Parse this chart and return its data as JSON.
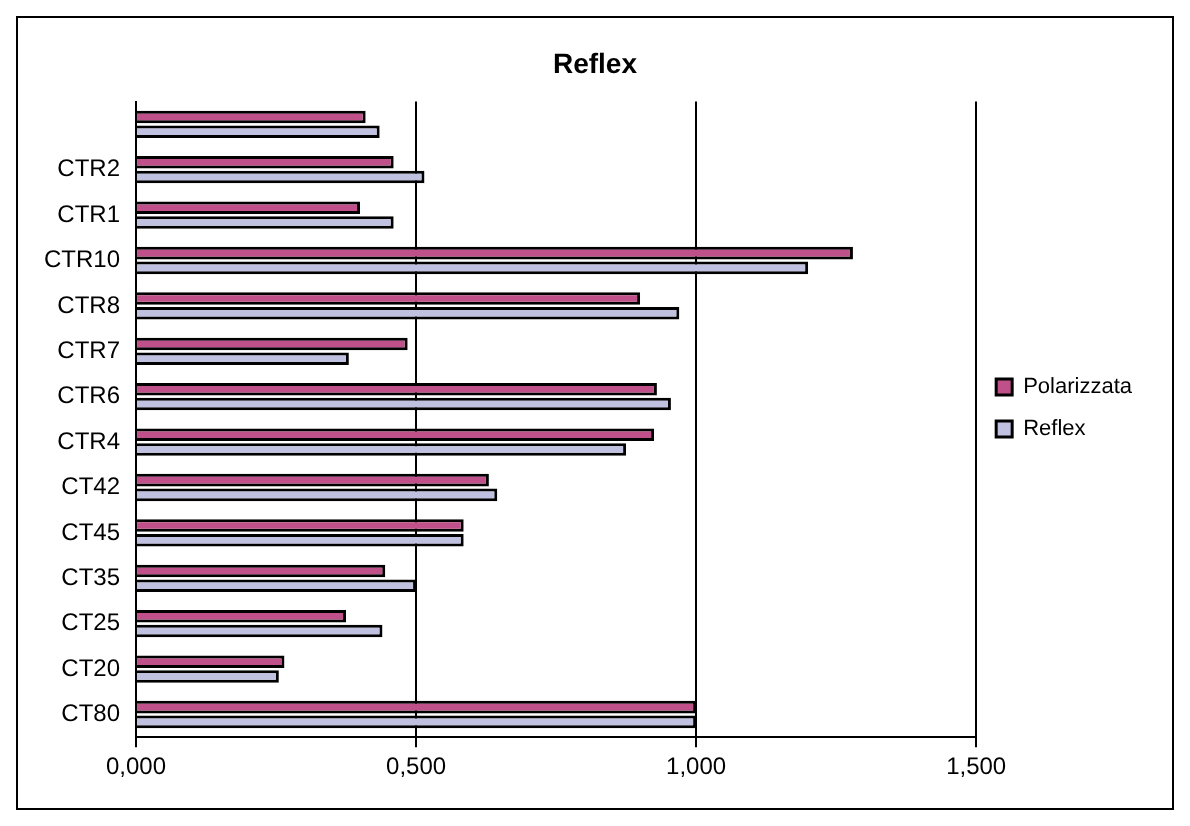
{
  "chart_data": {
    "type": "bar",
    "title": "Reflex",
    "orientation": "horizontal",
    "categories": [
      null,
      "CTR2",
      "CTR1",
      "CTR10",
      "CTR8",
      "CTR7",
      "CTR6",
      "CTR4",
      "CT42",
      "CT45",
      "CT35",
      "CT25",
      "CT20",
      "CT80"
    ],
    "series": [
      {
        "name": "Polarizzata",
        "color": "#c0508a",
        "values": [
          0.41,
          0.46,
          0.4,
          1.28,
          0.9,
          0.485,
          0.93,
          0.925,
          0.63,
          0.585,
          0.445,
          0.375,
          0.265,
          1.0
        ]
      },
      {
        "name": "Reflex",
        "color": "#c0c0e0",
        "values": [
          0.435,
          0.515,
          0.46,
          1.2,
          0.97,
          0.38,
          0.955,
          0.875,
          0.645,
          0.585,
          0.5,
          0.44,
          0.255,
          1.0
        ]
      }
    ],
    "xlim": [
      0,
      1.5
    ],
    "xticks": [
      {
        "value": 0,
        "label": "0,000"
      },
      {
        "value": 0.5,
        "label": "0,500"
      },
      {
        "value": 1,
        "label": "1,000"
      },
      {
        "value": 1.5,
        "label": "1,500"
      }
    ],
    "grid": "x",
    "legend": "right"
  }
}
